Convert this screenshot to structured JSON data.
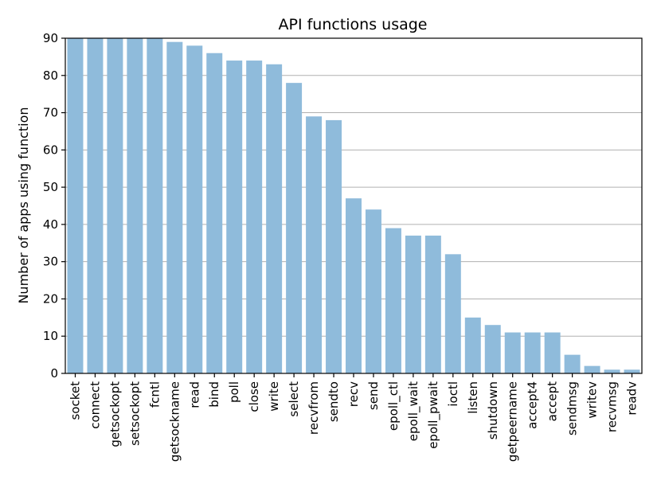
{
  "chart_data": {
    "type": "bar",
    "title": "API functions usage",
    "xlabel": "",
    "ylabel": "Number of apps using function",
    "ylim": [
      0,
      90
    ],
    "yticks": [
      0,
      10,
      20,
      30,
      40,
      50,
      60,
      70,
      80,
      90
    ],
    "grid": "y",
    "bar_color": "#8fbbdb",
    "categories": [
      "socket",
      "connect",
      "getsockopt",
      "setsockopt",
      "fcntl",
      "getsockname",
      "read",
      "bind",
      "poll",
      "close",
      "write",
      "select",
      "recvfrom",
      "sendto",
      "recv",
      "send",
      "epoll_ctl",
      "epoll_wait",
      "epoll_pwait",
      "ioctl",
      "listen",
      "shutdown",
      "getpeername",
      "accept4",
      "accept",
      "sendmsg",
      "writev",
      "recvmsg",
      "readv"
    ],
    "values": [
      90,
      90,
      90,
      90,
      90,
      89,
      88,
      86,
      84,
      84,
      83,
      78,
      69,
      68,
      47,
      44,
      39,
      37,
      37,
      32,
      15,
      13,
      11,
      11,
      11,
      5,
      2,
      1,
      1
    ]
  }
}
